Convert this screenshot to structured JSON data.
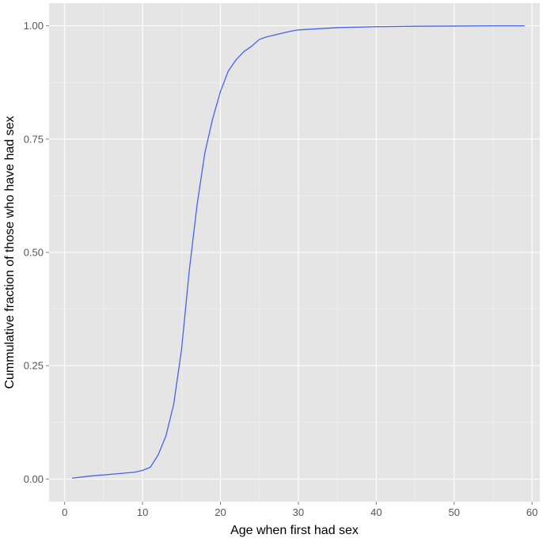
{
  "chart_data": {
    "type": "line",
    "title": "",
    "xlabel": "Age when first had sex",
    "ylabel": "Cummulative fraction of those who have had sex",
    "xlim": [
      -2,
      61
    ],
    "ylim": [
      -0.05,
      1.05
    ],
    "x_ticks": [
      0,
      10,
      20,
      30,
      40,
      50,
      60
    ],
    "x_tick_labels": [
      "0",
      "10",
      "20",
      "30",
      "40",
      "50",
      "60"
    ],
    "y_ticks": [
      0,
      0.25,
      0.5,
      0.75,
      1.0
    ],
    "y_tick_labels": [
      "0.00",
      "0.25",
      "0.50",
      "0.75",
      "1.00"
    ],
    "grid": true,
    "legend": "none",
    "series_color": "#4a63e6",
    "x": [
      1,
      3,
      5,
      7,
      9,
      10,
      11,
      12,
      13,
      14,
      15,
      16,
      17,
      18,
      19,
      20,
      21,
      22,
      23,
      24,
      25,
      26,
      27,
      28,
      29,
      30,
      35,
      40,
      45,
      50,
      55,
      59
    ],
    "y": [
      0.002,
      0.006,
      0.009,
      0.012,
      0.015,
      0.019,
      0.026,
      0.053,
      0.095,
      0.165,
      0.285,
      0.46,
      0.605,
      0.72,
      0.795,
      0.855,
      0.9,
      0.925,
      0.943,
      0.955,
      0.97,
      0.976,
      0.98,
      0.984,
      0.988,
      0.991,
      0.996,
      0.998,
      0.999,
      0.9995,
      1.0,
      1.0
    ]
  }
}
